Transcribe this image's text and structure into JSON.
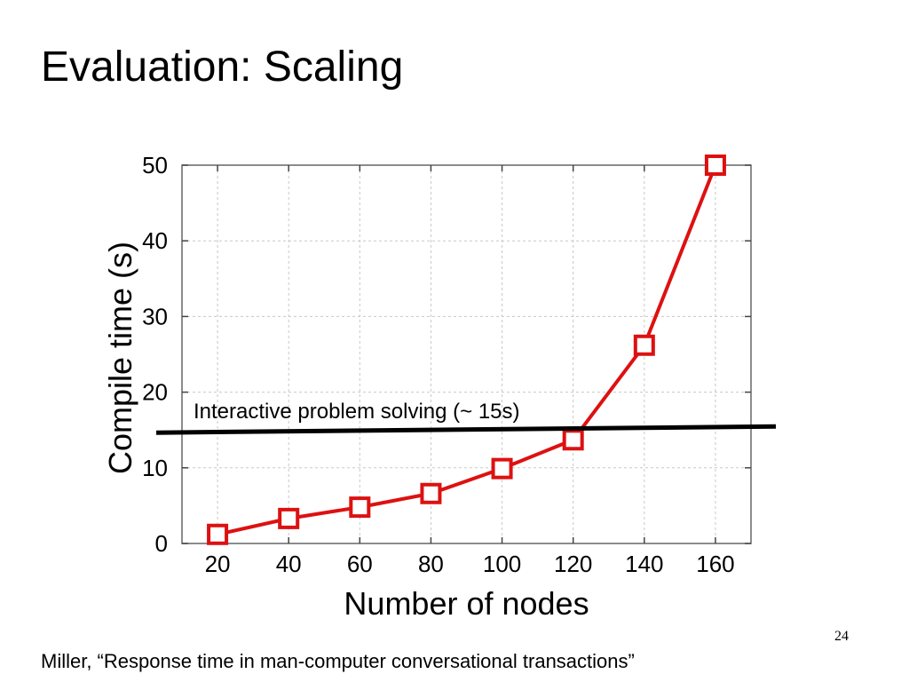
{
  "slide": {
    "title": "Evaluation: Scaling",
    "citation": "Miller, “Response time in man-computer conversational transactions”",
    "page_number": "24"
  },
  "chart_data": {
    "type": "line",
    "title": "",
    "xlabel": "Number of nodes",
    "ylabel": "Compile time (s)",
    "xlim": [
      10,
      170
    ],
    "ylim": [
      0,
      50
    ],
    "x_ticks": [
      20,
      40,
      60,
      80,
      100,
      120,
      140,
      160
    ],
    "y_ticks": [
      0,
      10,
      20,
      30,
      40,
      50
    ],
    "grid": true,
    "legend": "none",
    "series": [
      {
        "x": [
          20,
          40,
          60,
          80,
          100,
          120,
          140,
          160
        ],
        "y": [
          1.2,
          3.3,
          4.8,
          6.6,
          9.9,
          13.7,
          26.2,
          50
        ],
        "color": "#dd1111",
        "marker": "square-open"
      }
    ],
    "annotations": [
      {
        "text": "Interactive problem solving (~ 15s)",
        "y": 15,
        "color": "#000000"
      }
    ]
  }
}
